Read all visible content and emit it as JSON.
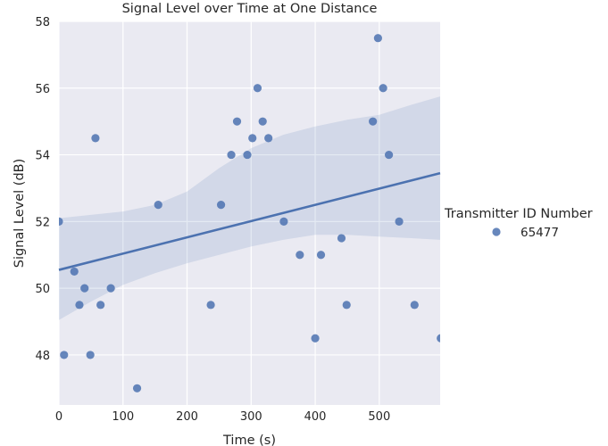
{
  "chart_data": {
    "type": "scatter",
    "title": "Signal Level over Time at One Distance",
    "xlabel": "Time (s)",
    "ylabel": "Signal Level (dB)",
    "xlim": [
      0,
      595
    ],
    "ylim": [
      46.5,
      58
    ],
    "x_ticks": [
      0,
      100,
      200,
      300,
      400,
      500
    ],
    "y_ticks": [
      48,
      50,
      52,
      54,
      56,
      58
    ],
    "grid": true,
    "legend": {
      "title": "Transmitter ID Number",
      "placement": "right",
      "entries": [
        "65477"
      ]
    },
    "series": [
      {
        "name": "65477",
        "color": "#4c72b0",
        "points": [
          [
            0,
            52
          ],
          [
            8,
            48
          ],
          [
            24,
            50.5
          ],
          [
            32,
            49.5
          ],
          [
            40,
            50
          ],
          [
            49,
            48
          ],
          [
            57,
            54.5
          ],
          [
            65,
            49.5
          ],
          [
            81,
            50
          ],
          [
            122,
            47
          ],
          [
            155,
            52.5
          ],
          [
            237,
            49.5
          ],
          [
            253,
            52.5
          ],
          [
            269,
            54
          ],
          [
            278,
            55
          ],
          [
            294,
            54
          ],
          [
            302,
            54.5
          ],
          [
            310,
            56
          ],
          [
            318,
            55
          ],
          [
            327,
            54.5
          ],
          [
            351,
            52
          ],
          [
            376,
            51
          ],
          [
            400,
            48.5
          ],
          [
            409,
            51
          ],
          [
            441,
            51.5
          ],
          [
            449,
            49.5
          ],
          [
            490,
            55
          ],
          [
            498,
            57.5
          ],
          [
            506,
            56
          ],
          [
            515,
            54
          ],
          [
            531,
            52
          ],
          [
            555,
            49.5
          ],
          [
            596,
            48.5
          ]
        ]
      }
    ],
    "regression": {
      "line": [
        [
          0,
          50.55
        ],
        [
          595,
          53.45
        ]
      ],
      "ci_upper": [
        [
          0,
          52.1
        ],
        [
          100,
          52.3
        ],
        [
          150,
          52.5
        ],
        [
          200,
          52.9
        ],
        [
          250,
          53.6
        ],
        [
          300,
          54.2
        ],
        [
          350,
          54.6
        ],
        [
          400,
          54.85
        ],
        [
          450,
          55.05
        ],
        [
          500,
          55.2
        ],
        [
          550,
          55.5
        ],
        [
          595,
          55.75
        ]
      ],
      "ci_lower": [
        [
          0,
          49.05
        ],
        [
          50,
          49.6
        ],
        [
          100,
          50.1
        ],
        [
          150,
          50.45
        ],
        [
          200,
          50.75
        ],
        [
          250,
          51.0
        ],
        [
          300,
          51.25
        ],
        [
          350,
          51.45
        ],
        [
          400,
          51.6
        ],
        [
          450,
          51.6
        ],
        [
          500,
          51.55
        ],
        [
          550,
          51.5
        ],
        [
          595,
          51.45
        ]
      ]
    }
  }
}
